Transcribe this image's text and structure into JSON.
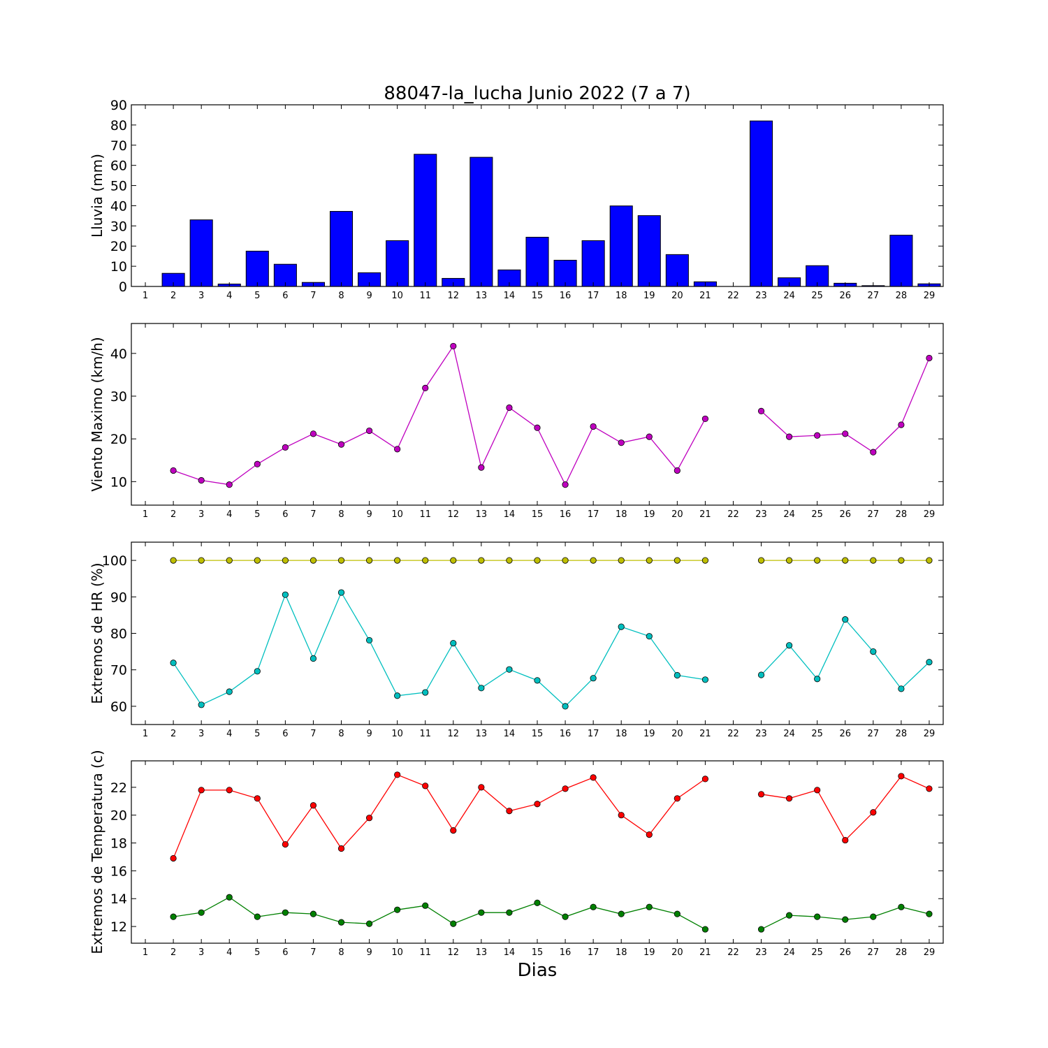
{
  "title": "88047-la_lucha Junio 2022  (7 a 7)",
  "xlabel": "Dias",
  "chart_data": [
    {
      "type": "bar",
      "ylabel": "Lluvia (mm)",
      "x": [
        1,
        2,
        3,
        4,
        5,
        6,
        7,
        8,
        9,
        10,
        11,
        12,
        13,
        14,
        15,
        16,
        17,
        18,
        19,
        20,
        21,
        22,
        23,
        24,
        25,
        26,
        27,
        28,
        29
      ],
      "values": [
        0,
        6.5,
        33,
        1.2,
        17.5,
        11,
        2,
        37.2,
        6.8,
        22.7,
        65.5,
        4,
        64,
        8.2,
        24.4,
        13,
        22.7,
        39.9,
        35.1,
        15.8,
        2.3,
        null,
        82,
        4.3,
        10.3,
        1.6,
        0.4,
        25.4,
        1.3
      ],
      "ylim": [
        0,
        90
      ],
      "yticks": [
        0,
        10,
        20,
        30,
        40,
        50,
        60,
        70,
        80,
        90
      ],
      "color": "#0000ff"
    },
    {
      "type": "line",
      "ylabel": "Viento Maximo (km/h)",
      "x": [
        1,
        2,
        3,
        4,
        5,
        6,
        7,
        8,
        9,
        10,
        11,
        12,
        13,
        14,
        15,
        16,
        17,
        18,
        19,
        20,
        21,
        22,
        23,
        24,
        25,
        26,
        27,
        28,
        29
      ],
      "values": [
        null,
        12.6,
        10.3,
        9.3,
        14.1,
        18.0,
        21.2,
        18.7,
        21.9,
        17.6,
        31.9,
        41.7,
        13.3,
        27.3,
        22.6,
        9.3,
        22.9,
        19.1,
        20.5,
        12.6,
        24.7,
        null,
        26.5,
        20.5,
        20.8,
        21.2,
        16.9,
        23.3,
        38.9
      ],
      "ylim": [
        4.5,
        47
      ],
      "yticks": [
        10,
        20,
        30,
        40
      ],
      "color": "#bf00bf"
    },
    {
      "type": "line",
      "ylabel": "Extremos de HR (%)",
      "x": [
        1,
        2,
        3,
        4,
        5,
        6,
        7,
        8,
        9,
        10,
        11,
        12,
        13,
        14,
        15,
        16,
        17,
        18,
        19,
        20,
        21,
        22,
        23,
        24,
        25,
        26,
        27,
        28,
        29
      ],
      "series": [
        {
          "values": [
            null,
            100,
            100,
            100,
            100,
            100,
            100,
            100,
            100,
            100,
            100,
            100,
            100,
            100,
            100,
            100,
            100,
            100,
            100,
            100,
            100,
            null,
            100,
            100,
            100,
            100,
            100,
            100,
            100
          ],
          "color": "#bfbf00"
        },
        {
          "values": [
            null,
            71.9,
            60.4,
            64.0,
            69.6,
            90.6,
            73.1,
            91.2,
            78.1,
            62.9,
            63.8,
            77.3,
            65.0,
            70.1,
            67.1,
            60.0,
            67.7,
            81.8,
            79.2,
            68.5,
            67.3,
            null,
            68.6,
            76.7,
            67.5,
            83.8,
            75.0,
            64.8,
            72.1
          ],
          "color": "#00bfbf"
        }
      ],
      "ylim": [
        55,
        105
      ],
      "yticks": [
        60,
        70,
        80,
        90,
        100
      ]
    },
    {
      "type": "line",
      "ylabel": "Extremos de Temperatura (c)",
      "x": [
        1,
        2,
        3,
        4,
        5,
        6,
        7,
        8,
        9,
        10,
        11,
        12,
        13,
        14,
        15,
        16,
        17,
        18,
        19,
        20,
        21,
        22,
        23,
        24,
        25,
        26,
        27,
        28,
        29
      ],
      "series": [
        {
          "values": [
            null,
            16.9,
            21.8,
            21.8,
            21.2,
            17.9,
            20.7,
            17.6,
            19.8,
            22.9,
            22.1,
            18.9,
            22.0,
            20.3,
            20.8,
            21.9,
            22.7,
            20.0,
            18.6,
            21.2,
            22.6,
            null,
            21.5,
            21.2,
            21.8,
            18.2,
            20.2,
            22.8,
            21.9
          ],
          "color": "#ff0000"
        },
        {
          "values": [
            null,
            12.7,
            13.0,
            14.1,
            12.7,
            13.0,
            12.9,
            12.3,
            12.2,
            13.2,
            13.5,
            12.2,
            13.0,
            13.0,
            13.7,
            12.7,
            13.4,
            12.9,
            13.4,
            12.9,
            11.8,
            null,
            11.8,
            12.8,
            12.7,
            12.5,
            12.7,
            13.4,
            12.9
          ],
          "color": "#008000"
        }
      ],
      "ylim": [
        10.8,
        23.9
      ],
      "yticks": [
        12,
        14,
        16,
        18,
        20,
        22
      ]
    }
  ]
}
